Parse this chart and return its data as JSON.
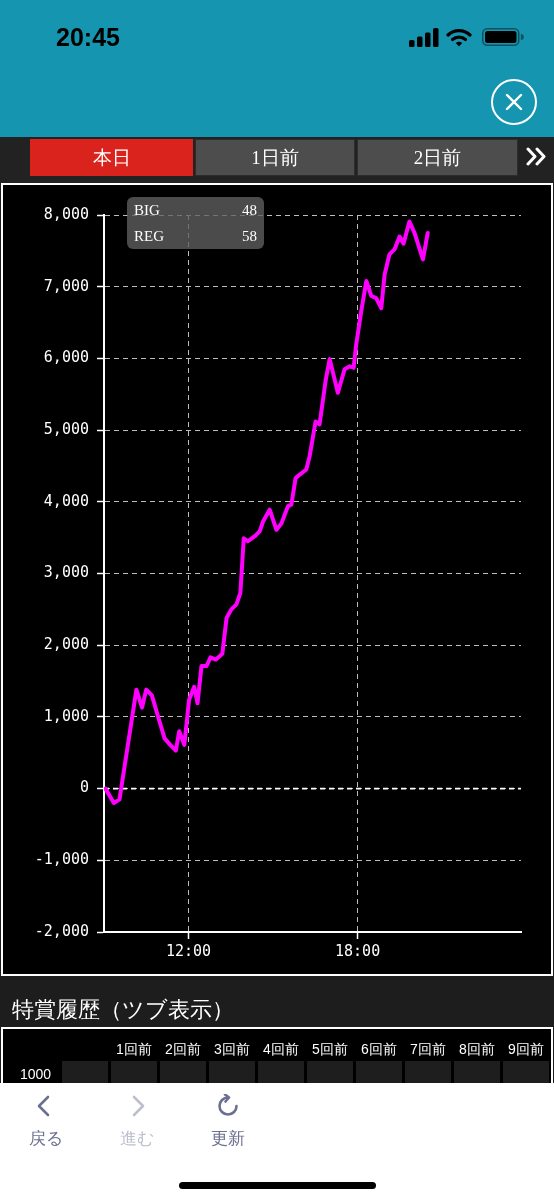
{
  "chart_data": {
    "type": "line",
    "annotations": [
      "20:45",
      "本日",
      "1日前",
      "2日前",
      "BIG",
      "48",
      "REG",
      "58",
      "特賞履歴（ツブ表示）",
      "1回前",
      "2回前",
      "3回前",
      "4回前",
      "5回前",
      "6回前",
      "7回前",
      "8回前",
      "9回前",
      "1000",
      "戻る",
      "進む",
      "更新"
    ],
    "x": [
      9.05,
      9.35,
      9.55,
      10.15,
      10.35,
      10.5,
      10.7,
      10.9,
      11.15,
      11.35,
      11.55,
      11.67,
      11.85,
      12.02,
      12.2,
      12.32,
      12.46,
      12.64,
      12.78,
      12.97,
      13.2,
      13.35,
      13.52,
      13.7,
      13.84,
      13.96,
      14.11,
      14.35,
      14.53,
      14.65,
      14.88,
      15.12,
      15.3,
      15.53,
      15.65,
      15.8,
      15.95,
      16.18,
      16.3,
      16.51,
      16.65,
      16.87,
      17.01,
      17.3,
      17.54,
      17.72,
      17.86,
      17.95,
      18.13,
      18.31,
      18.49,
      18.66,
      18.84,
      18.96,
      19.13,
      19.31,
      19.49,
      19.63,
      19.84,
      20.02,
      20.32,
      20.49
    ],
    "values": [
      0,
      -200,
      -150,
      1380,
      1130,
      1380,
      1300,
      1030,
      700,
      610,
      530,
      800,
      610,
      1240,
      1420,
      1190,
      1710,
      1710,
      1830,
      1800,
      1880,
      2380,
      2500,
      2570,
      2730,
      3490,
      3450,
      3520,
      3590,
      3730,
      3890,
      3610,
      3700,
      3940,
      3960,
      4330,
      4380,
      4450,
      4640,
      5120,
      5080,
      5700,
      5990,
      5520,
      5850,
      5890,
      5870,
      6190,
      6660,
      7080,
      6870,
      6840,
      6700,
      7170,
      7450,
      7520,
      7700,
      7600,
      7910,
      7750,
      7380,
      7750
    ],
    "color": "#ff00ff",
    "xlim": [
      9,
      23.8
    ],
    "xticks": [
      {
        "value": 12,
        "label": "12:00"
      },
      {
        "value": 18,
        "label": "18:00"
      }
    ],
    "ylim": [
      -2000,
      8000
    ],
    "yticks": [
      {
        "value": -2000,
        "label": "-2,000"
      },
      {
        "value": -1000,
        "label": "-1,000"
      },
      0,
      {
        "value": 1000,
        "label": "1,000"
      },
      {
        "value": 2000,
        "label": "2,000"
      },
      {
        "value": 3000,
        "label": "3,000"
      },
      {
        "value": 4000,
        "label": "4,000"
      },
      {
        "value": 5000,
        "label": "5,000"
      },
      {
        "value": 6000,
        "label": "6,000"
      },
      {
        "value": 7000,
        "label": "7,000"
      },
      {
        "value": 8000,
        "label": "8,000"
      }
    ],
    "ref_lines": [
      {
        "axis": "y",
        "value": 0,
        "color": "#ffffff",
        "line_style": "dashed"
      }
    ],
    "grid": true
  }
}
